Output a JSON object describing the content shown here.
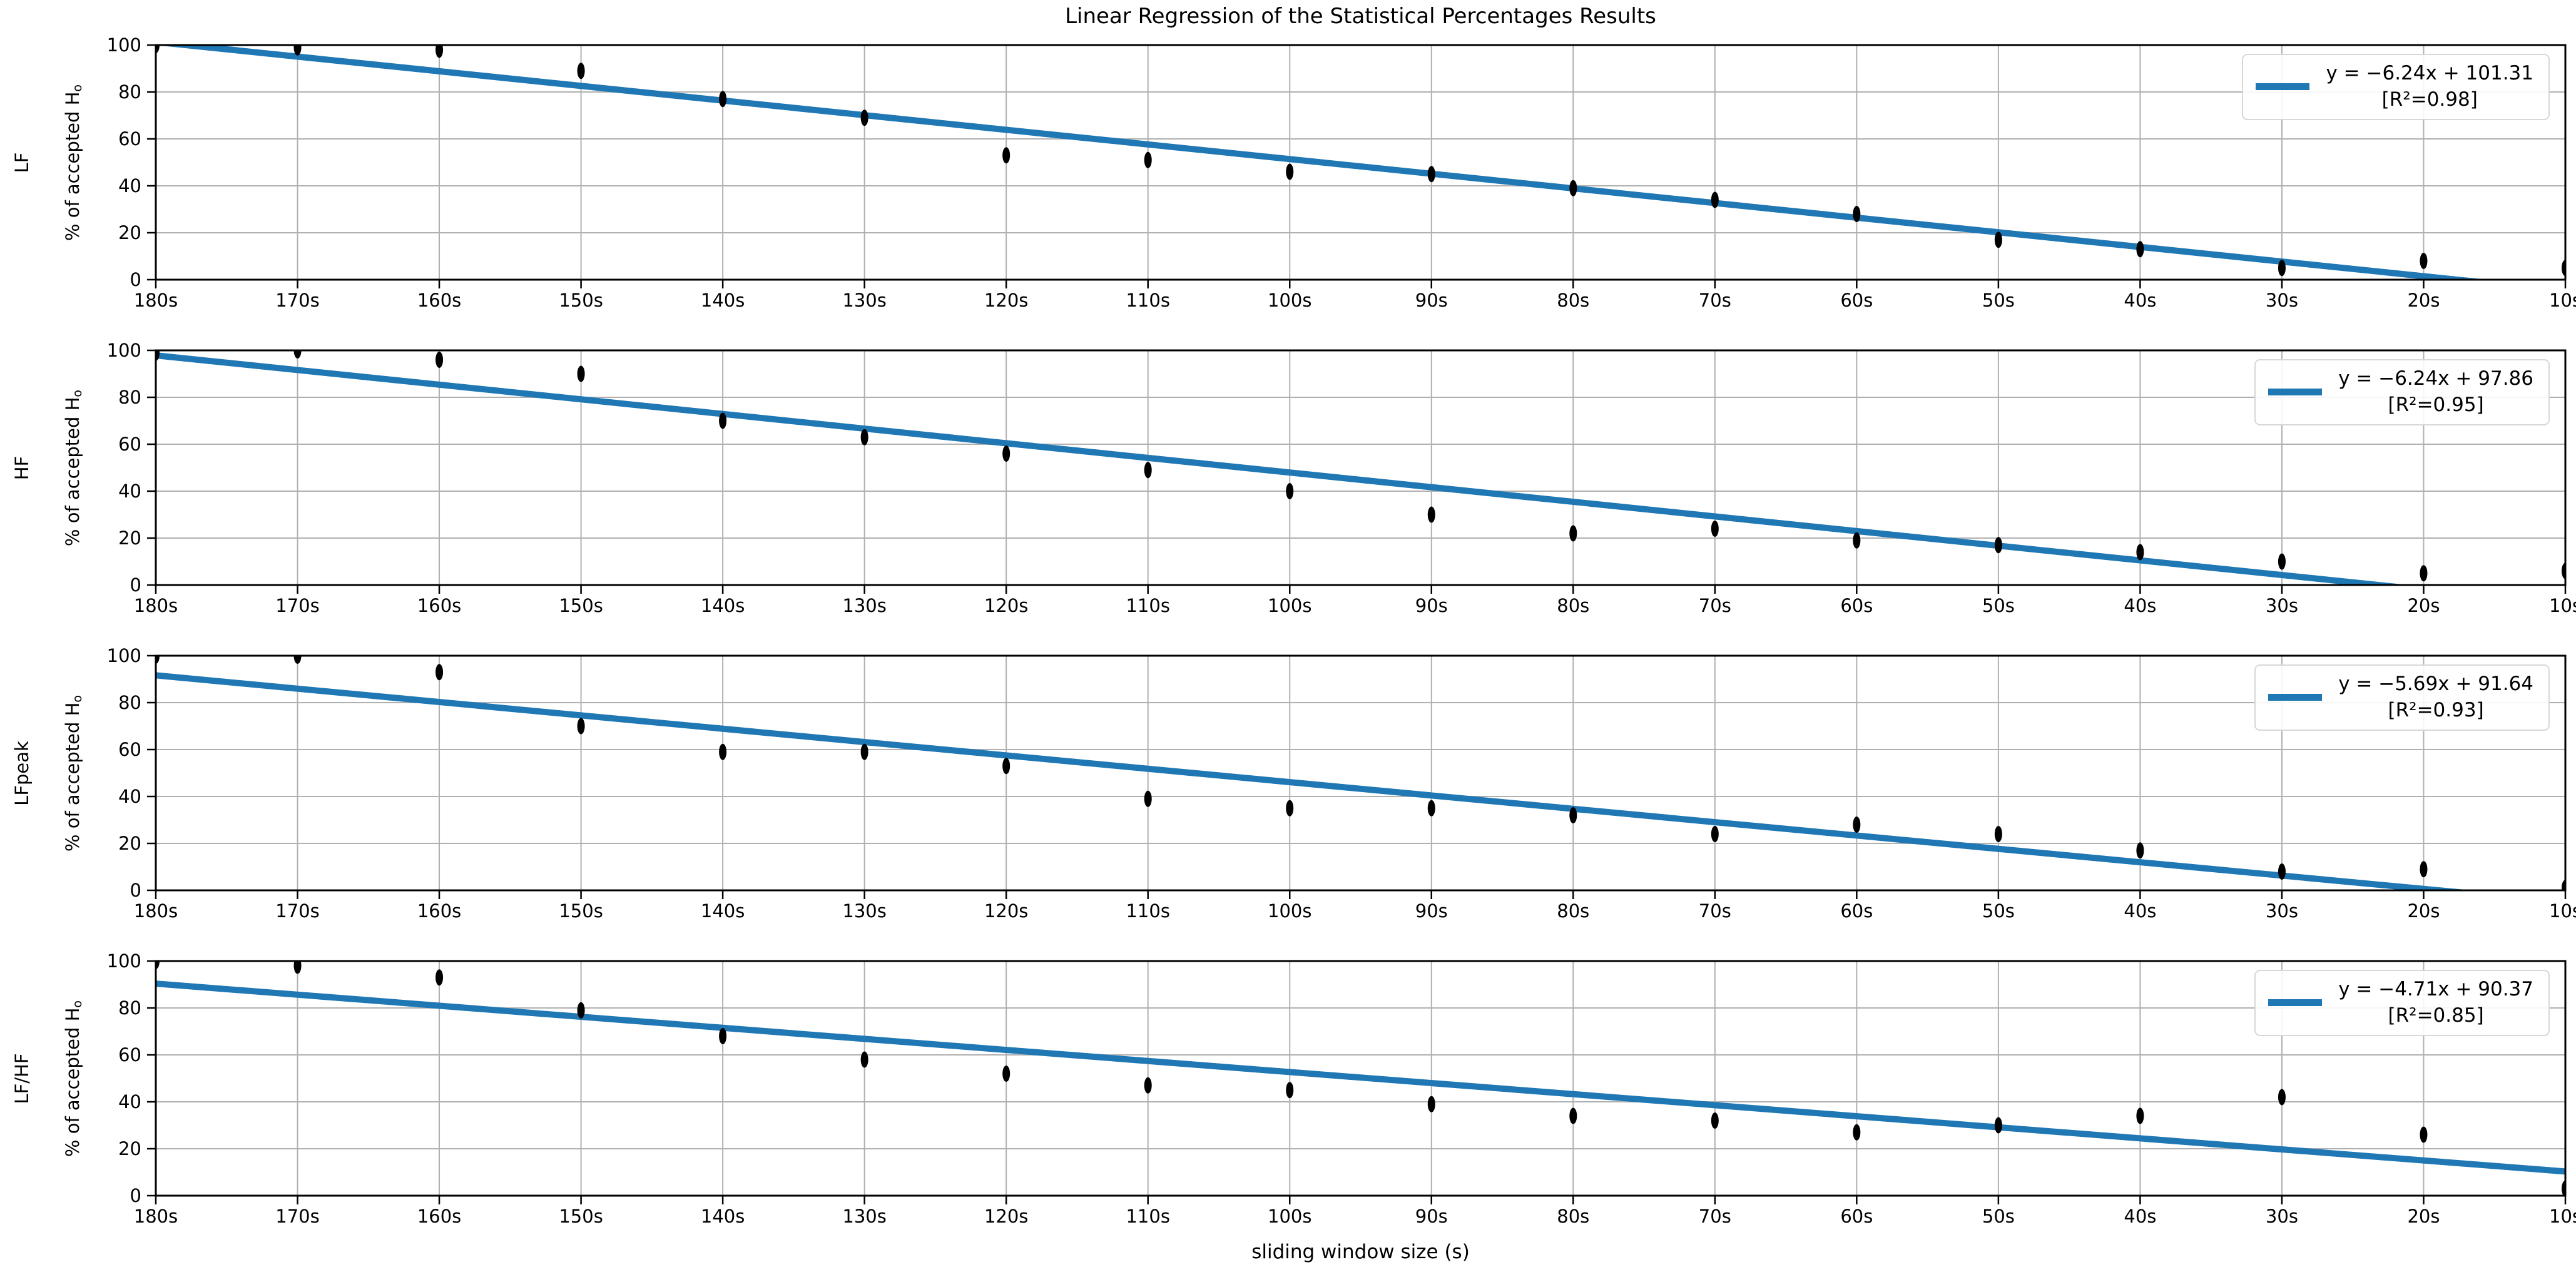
{
  "chart_data": {
    "type": "scatter",
    "title": "Linear Regression of the Statistical Percentages Results",
    "xlabel": "sliding window size (s)",
    "ylabel_prefix": "% of accepted H",
    "ylabel_sub": "o",
    "categories": [
      "180s",
      "170s",
      "160s",
      "150s",
      "140s",
      "130s",
      "120s",
      "110s",
      "100s",
      "90s",
      "80s",
      "70s",
      "60s",
      "50s",
      "40s",
      "30s",
      "20s",
      "10s"
    ],
    "ylim": [
      0,
      100
    ],
    "yticks": [
      0,
      20,
      40,
      60,
      80,
      100
    ],
    "grid": true,
    "legend_position": "upper right",
    "line_color": "#1f77b4",
    "marker_color": "#000000",
    "grid_color": "#b0b0b0",
    "series": [
      {
        "name": "LF",
        "values": [
          100,
          99,
          98,
          89,
          77,
          69,
          53,
          51,
          46,
          45,
          39,
          34,
          28,
          17,
          13,
          5,
          8,
          5
        ],
        "fit": {
          "slope": -6.24,
          "intercept": 101.31,
          "r2": 0.98
        },
        "legend_line1": "y = −6.24x + 101.31",
        "legend_line2": "[R²=0.98]"
      },
      {
        "name": "HF",
        "values": [
          99,
          100,
          96,
          90,
          70,
          63,
          56,
          49,
          40,
          30,
          22,
          24,
          19,
          17,
          14,
          10,
          5,
          6
        ],
        "fit": {
          "slope": -6.24,
          "intercept": 97.86,
          "r2": 0.95
        },
        "legend_line1": "y = −6.24x + 97.86",
        "legend_line2": "[R²=0.95]"
      },
      {
        "name": "LFpeak",
        "values": [
          100,
          100,
          93,
          70,
          59,
          59,
          53,
          39,
          35,
          35,
          32,
          24,
          28,
          24,
          17,
          8,
          9,
          1
        ],
        "fit": {
          "slope": -5.69,
          "intercept": 91.64,
          "r2": 0.93
        },
        "legend_line1": "y = −5.69x + 91.64",
        "legend_line2": "[R²=0.93]"
      },
      {
        "name": "LF/HF",
        "values": [
          100,
          98,
          93,
          79,
          68,
          58,
          52,
          47,
          45,
          39,
          34,
          32,
          27,
          30,
          34,
          42,
          26,
          3
        ],
        "fit": {
          "slope": -4.71,
          "intercept": 90.37,
          "r2": 0.85
        },
        "legend_line1": "y = −4.71x + 90.37",
        "legend_line2": "[R²=0.85]"
      }
    ]
  }
}
